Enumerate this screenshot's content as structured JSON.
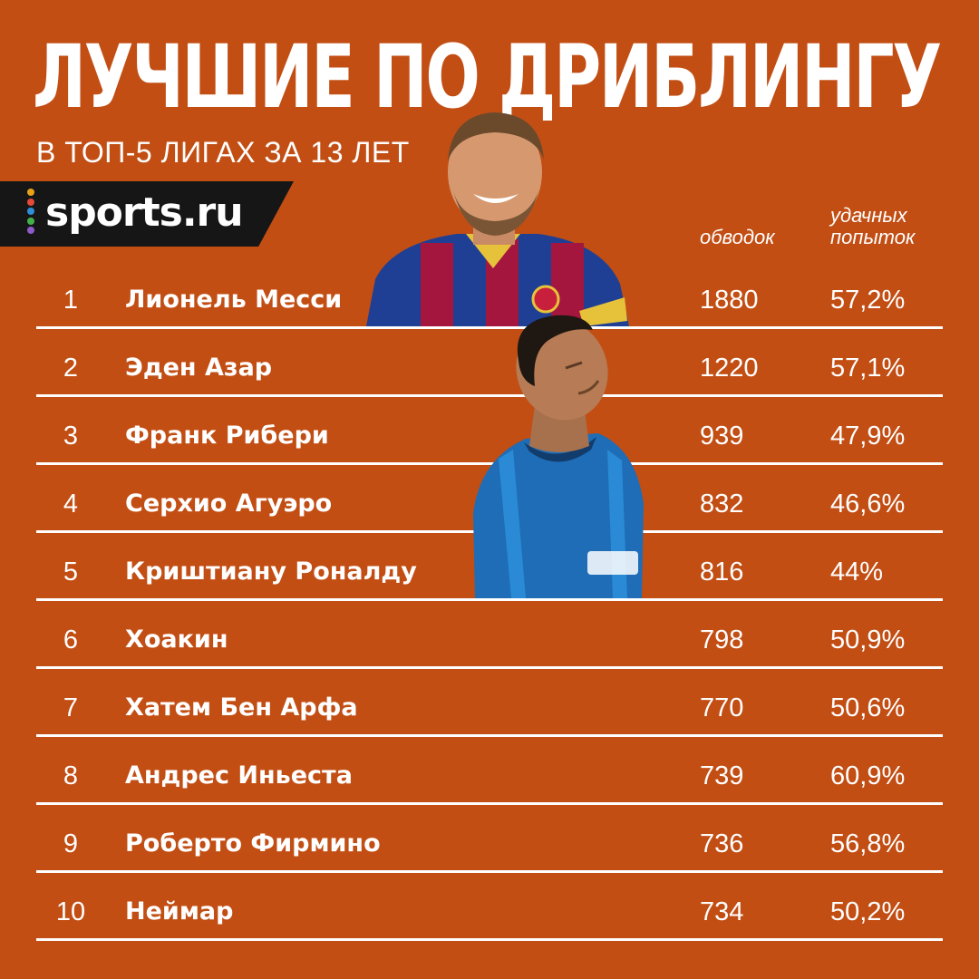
{
  "header": {
    "title": "ЛУЧШИЕ ПО ДРИБЛИНГУ",
    "subtitle": "В ТОП-5 ЛИГАХ ЗА 13 ЛЕТ"
  },
  "brand": {
    "logo_text": "sports.ru",
    "logo_dot_colors": [
      "#e8a21a",
      "#e34a3a",
      "#2f8fd6",
      "#43b04a",
      "#8e5bc8"
    ]
  },
  "columns": {
    "dribbles": "обводок",
    "success": "удачных попыток"
  },
  "colors": {
    "background": "#c24e14",
    "text": "#ffffff"
  },
  "rows": [
    {
      "rank": "1",
      "name": "Лионель Месси",
      "dribbles": "1880",
      "success": "57,2%"
    },
    {
      "rank": "2",
      "name": "Эден Азар",
      "dribbles": "1220",
      "success": "57,1%"
    },
    {
      "rank": "3",
      "name": "Франк Рибери",
      "dribbles": "939",
      "success": "47,9%"
    },
    {
      "rank": "4",
      "name": "Серхио Агуэро",
      "dribbles": "832",
      "success": "46,6%"
    },
    {
      "rank": "5",
      "name": "Криштиану Роналду",
      "dribbles": "816",
      "success": "44%"
    },
    {
      "rank": "6",
      "name": "Хоакин",
      "dribbles": "798",
      "success": "50,9%"
    },
    {
      "rank": "7",
      "name": "Хатем Бен Арфа",
      "dribbles": "770",
      "success": "50,6%"
    },
    {
      "rank": "8",
      "name": "Андрес Иньеста",
      "dribbles": "739",
      "success": "60,9%"
    },
    {
      "rank": "9",
      "name": "Роберто Фирмино",
      "dribbles": "736",
      "success": "56,8%"
    },
    {
      "rank": "10",
      "name": "Неймар",
      "dribbles": "734",
      "success": "50,2%"
    }
  ]
}
